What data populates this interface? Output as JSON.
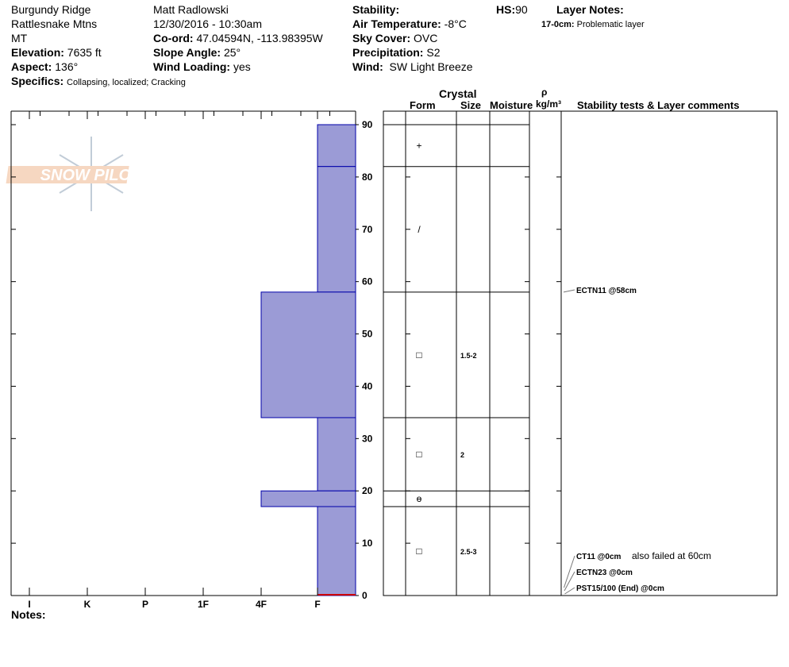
{
  "header": {
    "location": "Burgundy Ridge",
    "range": "Rattlesnake Mtns",
    "state": "MT",
    "elevation_label": "Elevation:",
    "elevation": "7635 ft",
    "aspect_label": "Aspect:",
    "aspect": "136°",
    "specifics_label": "Specifics:",
    "specifics": "Collapsing, localized;  Cracking",
    "observer": "Matt Radlowski",
    "datetime": "12/30/2016 - 10:30am",
    "coord_label": "Co-ord:",
    "coord": "47.04594N, -113.98395W",
    "slope_label": "Slope Angle:",
    "slope": "25°",
    "wind_loading_label": "Wind Loading:",
    "wind_loading": "yes",
    "stability_label": "Stability:",
    "air_temp_label": "Air Temperature:",
    "air_temp": "-8°C",
    "sky_label": "Sky Cover:",
    "sky": "OVC",
    "precip_label": "Precipitation:",
    "precip": "S2",
    "wind_label": "Wind:",
    "wind": "SW Light Breeze",
    "hs_label": "HS:",
    "hs": "90",
    "layer_notes_label": "Layer Notes:",
    "layer_note_range": "17-0cm:",
    "layer_note_text": "Problematic layer"
  },
  "logo_text": "SNOW PILOT",
  "columns": {
    "crystal": "Crystal",
    "form": "Form",
    "size": "Size",
    "moisture": "Moisture",
    "rho": "ρ",
    "density": "kg/m³",
    "comments": "Stability tests & Layer comments"
  },
  "notes_label": "Notes:",
  "colors": {
    "bar": "#9b9bd6",
    "bar_border": "#0000aa",
    "temp": "#cc0000"
  },
  "chart_data": {
    "type": "bar",
    "xlabel": "",
    "ylabel": "",
    "hardness_categories": [
      "I",
      "K",
      "P",
      "1F",
      "4F",
      "F"
    ],
    "ylim": [
      0,
      90
    ],
    "y_ticks": [
      0,
      10,
      20,
      30,
      40,
      50,
      60,
      70,
      80,
      90
    ],
    "layers": [
      {
        "top": 90,
        "bottom": 82,
        "hardness": "F",
        "form": "+",
        "size": ""
      },
      {
        "top": 82,
        "bottom": 58,
        "hardness": "F",
        "form": "/",
        "size": ""
      },
      {
        "top": 58,
        "bottom": 34,
        "hardness": "4F",
        "form": "□",
        "size": "1.5-2"
      },
      {
        "top": 34,
        "bottom": 20,
        "hardness": "F",
        "form": "□",
        "size": "2"
      },
      {
        "top": 20,
        "bottom": 17,
        "hardness": "4F",
        "form": "ɵ",
        "size": ""
      },
      {
        "top": 17,
        "bottom": 0,
        "hardness": "F",
        "form": "□",
        "size": "2.5-3"
      }
    ],
    "stability_tests": [
      {
        "depth": 58,
        "label": "ECTN11 @58cm",
        "note": ""
      },
      {
        "depth": 0,
        "label": "CT11 @0cm",
        "note": "also failed at 60cm"
      },
      {
        "depth": 0,
        "label": "ECTN23 @0cm",
        "note": ""
      },
      {
        "depth": 0,
        "label": "PST15/100 (End) @0cm",
        "note": ""
      }
    ]
  }
}
